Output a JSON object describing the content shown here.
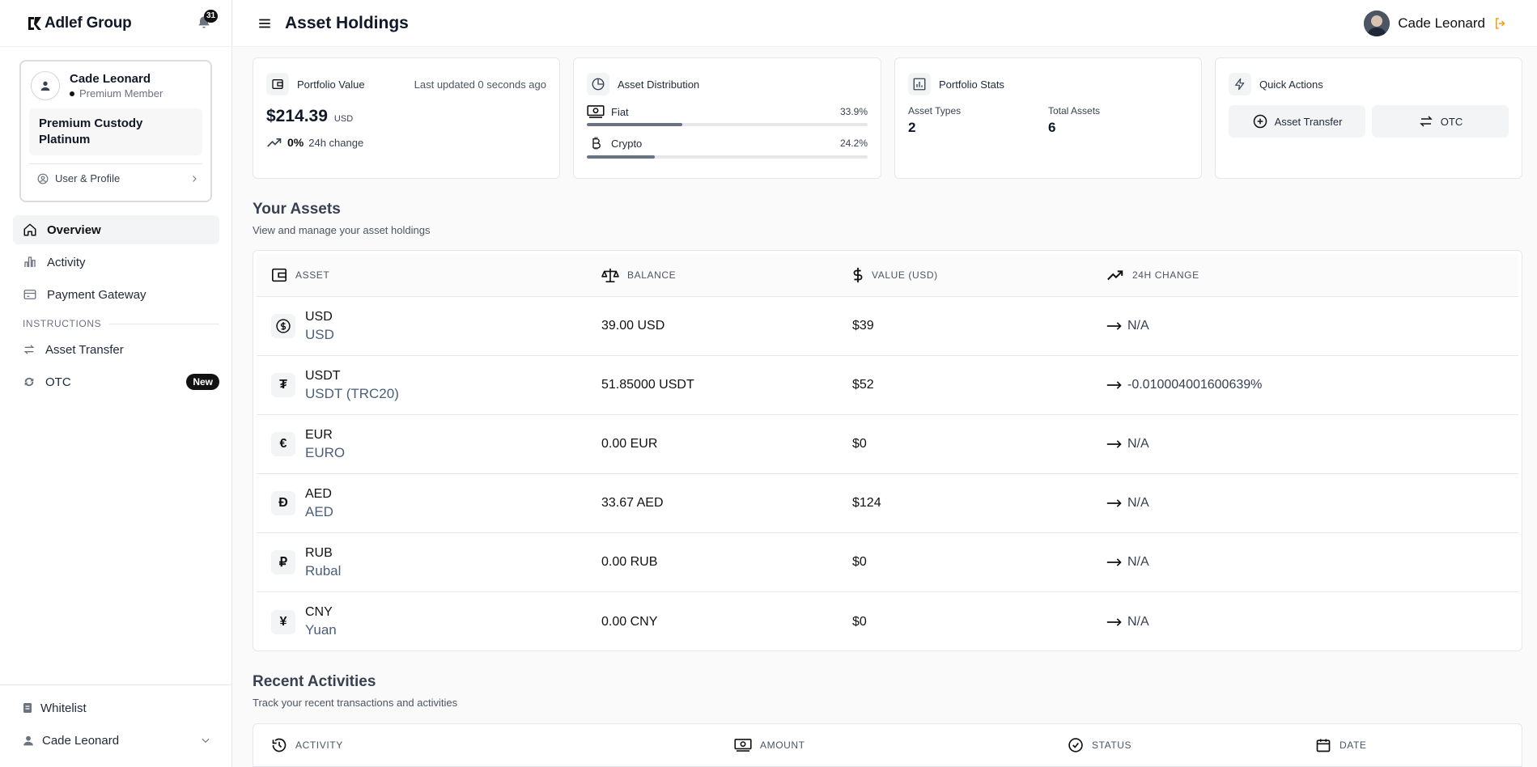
{
  "brand": {
    "name": "Adlef Group",
    "notification_count": "31"
  },
  "header": {
    "title": "Asset Holdings",
    "user_name": "Cade Leonard"
  },
  "user_card": {
    "name": "Cade Leonard",
    "member": "Premium Member",
    "plan": "Premium Custody Platinum",
    "profile_link": "User & Profile"
  },
  "nav": {
    "items": [
      {
        "label": "Overview"
      },
      {
        "label": "Activity"
      },
      {
        "label": "Payment Gateway"
      }
    ],
    "section_label": "INSTRUCTIONS",
    "sub_items": [
      {
        "label": "Asset Transfer"
      },
      {
        "label": "OTC",
        "badge": "New"
      }
    ],
    "bottom": {
      "whitelist": "Whitelist",
      "user": "Cade Leonard"
    }
  },
  "portfolio_value": {
    "title": "Portfolio Value",
    "updated": "Last updated 0 seconds ago",
    "amount": "$214.39",
    "currency": "USD",
    "change_pct": "0%",
    "change_label": "24h change"
  },
  "asset_distribution": {
    "title": "Asset Distribution",
    "items": [
      {
        "label": "Fiat",
        "pct": "33.9%",
        "fraction": 0.339
      },
      {
        "label": "Crypto",
        "pct": "24.2%",
        "fraction": 0.242
      }
    ]
  },
  "portfolio_stats": {
    "title": "Portfolio Stats",
    "asset_types_label": "Asset Types",
    "asset_types": "2",
    "total_assets_label": "Total Assets",
    "total_assets": "6"
  },
  "quick_actions": {
    "title": "Quick Actions",
    "transfer": "Asset Transfer",
    "otc": "OTC"
  },
  "assets_section": {
    "title": "Your Assets",
    "subtitle": "View and manage your asset holdings",
    "columns": [
      "ASSET",
      "BALANCE",
      "VALUE (USD)",
      "24H CHANGE"
    ],
    "rows": [
      {
        "icon": "$",
        "code": "USD",
        "name": "USD",
        "balance": "39.00 USD",
        "value": "$39",
        "change": "N/A"
      },
      {
        "icon": "₮",
        "code": "USDT",
        "name": "USDT (TRC20)",
        "balance": "51.85000 USDT",
        "value": "$52",
        "change": "-0.010004001600639%"
      },
      {
        "icon": "€",
        "code": "EUR",
        "name": "EURO",
        "balance": "0.00 EUR",
        "value": "$0",
        "change": "N/A"
      },
      {
        "icon": "Đ",
        "code": "AED",
        "name": "AED",
        "balance": "33.67 AED",
        "value": "$124",
        "change": "N/A"
      },
      {
        "icon": "₽",
        "code": "RUB",
        "name": "Rubal",
        "balance": "0.00 RUB",
        "value": "$0",
        "change": "N/A"
      },
      {
        "icon": "¥",
        "code": "CNY",
        "name": "Yuan",
        "balance": "0.00 CNY",
        "value": "$0",
        "change": "N/A"
      }
    ]
  },
  "activities_section": {
    "title": "Recent Activities",
    "subtitle": "Track your recent transactions and activities",
    "columns": [
      "ACTIVITY",
      "AMOUNT",
      "STATUS",
      "DATE"
    ]
  }
}
